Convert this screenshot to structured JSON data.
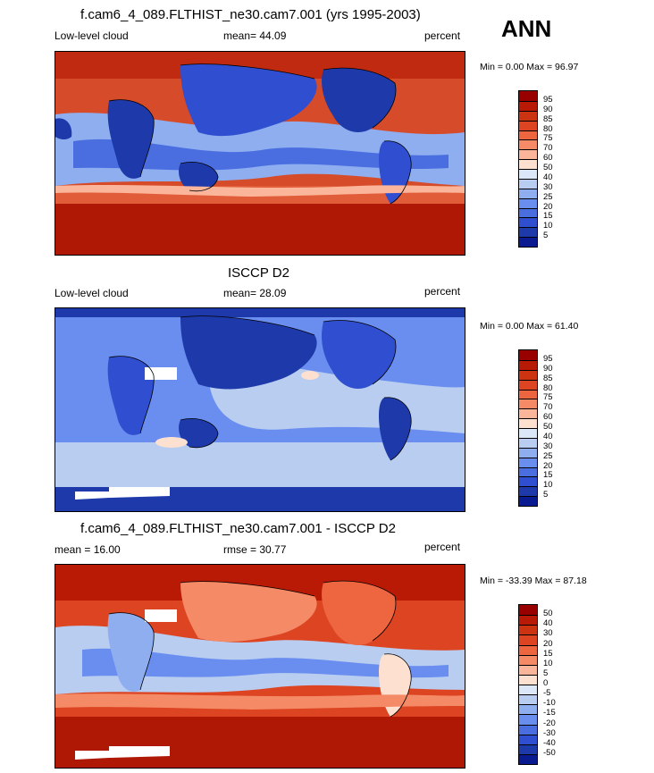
{
  "header": {
    "ann_label": "ANN"
  },
  "panels": [
    {
      "title": "f.cam6_4_089.FLTHIST_ne30.cam7.001 (yrs 1995-2003)",
      "left_label": "Low-level cloud",
      "stat_label": "mean=  44.09",
      "units": "percent",
      "minmax": "Min =   0.00 Max =  96.97"
    },
    {
      "title": "ISCCP D2",
      "left_label": "Low-level cloud",
      "stat_label": "mean=  28.09",
      "units": "percent",
      "minmax": "Min =   0.00 Max =  61.40"
    },
    {
      "title": "f.cam6_4_089.FLTHIST_ne30.cam7.001 - ISCCP D2",
      "left_label": "mean =  16.00",
      "stat_label": "rmse =  30.77",
      "units": "percent",
      "minmax": "Min = -33.39 Max =  87.18"
    }
  ],
  "chart_data": [
    {
      "type": "heatmap",
      "title": "f.cam6_4_089.FLTHIST_ne30.cam7.001 (yrs 1995-2003)",
      "variable": "Low-level cloud",
      "units": "percent",
      "mean": 44.09,
      "min": 0.0,
      "max": 96.97,
      "colorbar_levels": [
        5,
        10,
        15,
        20,
        25,
        30,
        40,
        50,
        60,
        70,
        75,
        80,
        85,
        90,
        95
      ],
      "colorbar_labels": [
        "95",
        "90",
        "85",
        "80",
        "75",
        "70",
        "60",
        "50",
        "40",
        "30",
        "25",
        "20",
        "15",
        "10",
        "5"
      ],
      "colors_top_to_bottom": [
        "#990000",
        "#b81a06",
        "#cc3311",
        "#dd4422",
        "#ee6640",
        "#f58a66",
        "#fbb59a",
        "#fde0d0",
        "#dce8f8",
        "#b8cdf0",
        "#8eaef0",
        "#6a8df0",
        "#4a6ee0",
        "#2f4fd0",
        "#1e3aaa",
        "#0a1a90"
      ]
    },
    {
      "type": "heatmap",
      "title": "ISCCP D2",
      "variable": "Low-level cloud",
      "units": "percent",
      "mean": 28.09,
      "min": 0.0,
      "max": 61.4,
      "colorbar_levels": [
        5,
        10,
        15,
        20,
        25,
        30,
        40,
        50,
        60,
        70,
        75,
        80,
        85,
        90,
        95
      ],
      "colorbar_labels": [
        "95",
        "90",
        "85",
        "80",
        "75",
        "70",
        "60",
        "50",
        "40",
        "30",
        "25",
        "20",
        "15",
        "10",
        "5"
      ],
      "colors_top_to_bottom": [
        "#990000",
        "#b81a06",
        "#cc3311",
        "#dd4422",
        "#ee6640",
        "#f58a66",
        "#fbb59a",
        "#fde0d0",
        "#dce8f8",
        "#b8cdf0",
        "#8eaef0",
        "#6a8df0",
        "#4a6ee0",
        "#2f4fd0",
        "#1e3aaa",
        "#0a1a90"
      ]
    },
    {
      "type": "heatmap",
      "title": "f.cam6_4_089.FLTHIST_ne30.cam7.001 - ISCCP D2",
      "units": "percent",
      "mean": 16.0,
      "rmse": 30.77,
      "min": -33.39,
      "max": 87.18,
      "colorbar_levels": [
        -50,
        -40,
        -30,
        -20,
        -15,
        -10,
        -5,
        0,
        5,
        10,
        15,
        20,
        30,
        40,
        50
      ],
      "colorbar_labels": [
        "50",
        "40",
        "30",
        "20",
        "15",
        "10",
        "5",
        "0",
        "-5",
        "-10",
        "-15",
        "-20",
        "-30",
        "-40",
        "-50"
      ],
      "colors_top_to_bottom": [
        "#990000",
        "#b81a06",
        "#cc3311",
        "#dd4422",
        "#ee6640",
        "#f58a66",
        "#fbb59a",
        "#fde0d0",
        "#dce8f8",
        "#b8cdf0",
        "#8eaef0",
        "#6a8df0",
        "#4a6ee0",
        "#2f4fd0",
        "#1e3aaa",
        "#0a1a90"
      ]
    }
  ]
}
